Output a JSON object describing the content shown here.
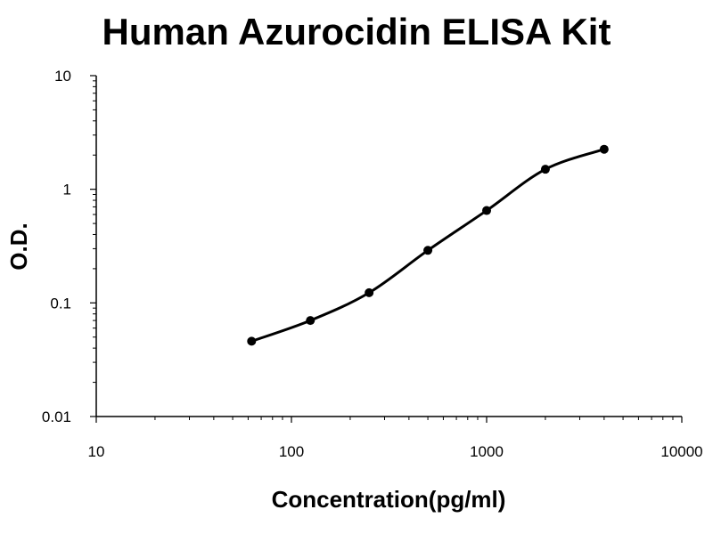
{
  "chart_data": {
    "type": "scatter",
    "title": "Human Azurocidin ELISA Kit",
    "xlabel": "Concentration(pg/ml)",
    "ylabel": "O.D.",
    "x_scale": "log",
    "y_scale": "log",
    "xlim": [
      10,
      10000
    ],
    "ylim": [
      0.01,
      10
    ],
    "x_ticks": [
      "10",
      "100",
      "1000",
      "10000"
    ],
    "y_ticks": [
      "0.01",
      "0.1",
      "1",
      "10"
    ],
    "grid": false,
    "legend": "none",
    "fit_curve": true,
    "series": [
      {
        "points": [
          {
            "x": 62.5,
            "y": 0.046
          },
          {
            "x": 125,
            "y": 0.07
          },
          {
            "x": 250,
            "y": 0.123
          },
          {
            "x": 500,
            "y": 0.29
          },
          {
            "x": 1000,
            "y": 0.65
          },
          {
            "x": 2000,
            "y": 1.5
          },
          {
            "x": 4000,
            "y": 2.25
          }
        ]
      }
    ],
    "colors": {
      "marks": "#000000",
      "axis": "#000000"
    }
  }
}
